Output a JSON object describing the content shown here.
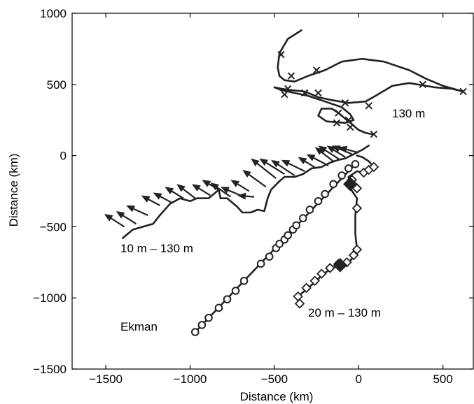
{
  "chart_data": {
    "type": "line",
    "title": "",
    "xlabel": "Distance (km)",
    "ylabel": "Distance (km)",
    "xlim": [
      -1700,
      680
    ],
    "ylim": [
      -1500,
      1000
    ],
    "xticks": [
      -1500,
      -1000,
      -500,
      0,
      500
    ],
    "yticks": [
      -1500,
      -1000,
      -500,
      0,
      500,
      1000
    ],
    "tick_labels_x": [
      "−1500",
      "−1000",
      "−500",
      "0",
      "500"
    ],
    "tick_labels_y": [
      "−1500",
      "−1000",
      "−500",
      "0",
      "500",
      "1000"
    ],
    "grid": false,
    "annotations": [
      "130 m",
      "10 m – 130 m",
      "20 m – 130 m",
      "Ekman"
    ],
    "series": [
      {
        "label_key": "130 m",
        "marker": "x",
        "points": [
          [
            -340,
            880
          ],
          [
            -420,
            820
          ],
          [
            -470,
            720
          ],
          [
            -480,
            620
          ],
          [
            -470,
            560
          ],
          [
            -440,
            530
          ],
          [
            -380,
            520
          ],
          [
            -300,
            560
          ],
          [
            -200,
            600
          ],
          [
            -100,
            660
          ],
          [
            20,
            680
          ],
          [
            150,
            660
          ],
          [
            300,
            600
          ],
          [
            400,
            540
          ],
          [
            500,
            490
          ],
          [
            620,
            450
          ],
          [
            550,
            470
          ],
          [
            450,
            480
          ],
          [
            300,
            510
          ],
          [
            200,
            490
          ],
          [
            100,
            420
          ],
          [
            40,
            380
          ],
          [
            -60,
            370
          ],
          [
            -160,
            390
          ],
          [
            -240,
            410
          ],
          [
            -320,
            450
          ],
          [
            -400,
            460
          ],
          [
            -460,
            470
          ],
          [
            -500,
            480
          ],
          [
            -460,
            460
          ],
          [
            -380,
            440
          ],
          [
            -300,
            420
          ],
          [
            -200,
            380
          ],
          [
            -100,
            340
          ],
          [
            -50,
            290
          ],
          [
            -30,
            250
          ],
          [
            -80,
            230
          ],
          [
            -190,
            240
          ],
          [
            -240,
            280
          ],
          [
            -220,
            330
          ],
          [
            -160,
            330
          ],
          [
            -120,
            300
          ],
          [
            -80,
            260
          ],
          [
            -40,
            220
          ],
          [
            0,
            180
          ],
          [
            40,
            160
          ],
          [
            80,
            150
          ]
        ],
        "marker_points": [
          [
            -460,
            710
          ],
          [
            -400,
            560
          ],
          [
            -250,
            600
          ],
          [
            -420,
            470
          ],
          [
            -440,
            430
          ],
          [
            -320,
            440
          ],
          [
            -240,
            440
          ],
          [
            -80,
            370
          ],
          [
            60,
            350
          ],
          [
            380,
            500
          ],
          [
            620,
            450
          ],
          [
            -120,
            300
          ],
          [
            -60,
            250
          ],
          [
            -130,
            230
          ],
          [
            -50,
            200
          ],
          [
            90,
            150
          ]
        ]
      },
      {
        "label_key": "10 m – 130 m",
        "marker": "arrow",
        "points": [
          [
            -1400,
            -580
          ],
          [
            -1340,
            -520
          ],
          [
            -1280,
            -500
          ],
          [
            -1220,
            -480
          ],
          [
            -1180,
            -420
          ],
          [
            -1120,
            -340
          ],
          [
            -1060,
            -300
          ],
          [
            -1000,
            -320
          ],
          [
            -960,
            -300
          ],
          [
            -890,
            -300
          ],
          [
            -830,
            -240
          ],
          [
            -820,
            -300
          ],
          [
            -780,
            -300
          ],
          [
            -720,
            -360
          ],
          [
            -690,
            -400
          ],
          [
            -640,
            -400
          ],
          [
            -600,
            -380
          ],
          [
            -560,
            -390
          ],
          [
            -540,
            -300
          ],
          [
            -520,
            -240
          ],
          [
            -470,
            -180
          ],
          [
            -440,
            -150
          ],
          [
            -380,
            -150
          ],
          [
            -330,
            -130
          ],
          [
            -280,
            -90
          ],
          [
            -220,
            -80
          ],
          [
            -170,
            -50
          ],
          [
            -120,
            -30
          ],
          [
            -80,
            -20
          ],
          [
            -30,
            10
          ],
          [
            20,
            40
          ],
          [
            60,
            70
          ]
        ],
        "arrow_vectors": [
          [
            -1390,
            -500,
            -1510,
            -410
          ],
          [
            -1320,
            -480,
            -1440,
            -390
          ],
          [
            -1250,
            -420,
            -1380,
            -350
          ],
          [
            -1180,
            -350,
            -1290,
            -280
          ],
          [
            -1110,
            -330,
            -1220,
            -260
          ],
          [
            -1040,
            -300,
            -1150,
            -220
          ],
          [
            -970,
            -300,
            -1080,
            -200
          ],
          [
            -880,
            -280,
            -990,
            -200
          ],
          [
            -830,
            -240,
            -930,
            -170
          ],
          [
            -760,
            -290,
            -880,
            -190
          ],
          [
            -700,
            -280,
            -820,
            -220
          ],
          [
            -650,
            -250,
            -760,
            -170
          ],
          [
            -620,
            -290,
            -720,
            -280
          ],
          [
            -550,
            -220,
            -690,
            -100
          ],
          [
            -490,
            -160,
            -640,
            -20
          ],
          [
            -440,
            -130,
            -590,
            -20
          ],
          [
            -380,
            -140,
            -520,
            -30
          ],
          [
            -320,
            -110,
            -460,
            -30
          ],
          [
            -250,
            -90,
            -360,
            -10
          ],
          [
            -180,
            -70,
            -310,
            10
          ],
          [
            -150,
            -40,
            -260,
            60
          ],
          [
            -110,
            -30,
            -240,
            70
          ],
          [
            -80,
            -10,
            -190,
            70
          ],
          [
            -40,
            10,
            -160,
            70
          ],
          [
            0,
            20,
            -120,
            60
          ]
        ]
      },
      {
        "label_key": "20 m – 130 m",
        "marker": "diamond",
        "points": [
          [
            -350,
            -1040
          ],
          [
            -360,
            -990
          ],
          [
            -300,
            -930
          ],
          [
            -250,
            -880
          ],
          [
            -210,
            -830
          ],
          [
            -150,
            -790
          ],
          [
            -110,
            -760
          ],
          [
            -60,
            -750
          ],
          [
            -20,
            -700
          ],
          [
            -10,
            -660
          ],
          [
            -20,
            -550
          ],
          [
            -20,
            -420
          ],
          [
            -10,
            -300
          ],
          [
            -50,
            -230
          ],
          [
            -60,
            -150
          ],
          [
            -10,
            -110
          ],
          [
            30,
            -120
          ],
          [
            60,
            -100
          ],
          [
            90,
            -80
          ],
          [
            60,
            -40
          ],
          [
            20,
            -10
          ],
          [
            -10,
            0
          ]
        ],
        "marker_points": [
          [
            -350,
            -1040
          ],
          [
            -360,
            -990
          ],
          [
            -310,
            -930
          ],
          [
            -260,
            -880
          ],
          [
            -220,
            -830
          ],
          [
            -170,
            -790
          ],
          [
            -120,
            -760
          ],
          [
            -70,
            -750
          ],
          [
            -30,
            -700
          ],
          [
            -10,
            -660
          ],
          [
            -10,
            -370
          ],
          [
            -10,
            -230
          ],
          [
            -40,
            -200
          ],
          [
            -40,
            -170
          ],
          [
            30,
            -120
          ],
          [
            60,
            -100
          ],
          [
            90,
            -80
          ]
        ],
        "filled_points": [
          [
            -50,
            -200
          ],
          [
            -110,
            -770
          ]
        ]
      },
      {
        "label_key": "Ekman",
        "marker": "o",
        "points": [
          [
            -970,
            -1240
          ],
          [
            -20,
            -60
          ]
        ],
        "marker_points": [
          [
            -970,
            -1240
          ],
          [
            -930,
            -1190
          ],
          [
            -890,
            -1140
          ],
          [
            -830,
            -1070
          ],
          [
            -780,
            -1010
          ],
          [
            -730,
            -950
          ],
          [
            -680,
            -880
          ],
          [
            -580,
            -760
          ],
          [
            -530,
            -710
          ],
          [
            -490,
            -650
          ],
          [
            -470,
            -620
          ],
          [
            -440,
            -590
          ],
          [
            -420,
            -560
          ],
          [
            -390,
            -520
          ],
          [
            -370,
            -490
          ],
          [
            -330,
            -440
          ],
          [
            -290,
            -380
          ],
          [
            -240,
            -320
          ],
          [
            -200,
            -270
          ],
          [
            -150,
            -200
          ],
          [
            -100,
            -140
          ],
          [
            -60,
            -90
          ],
          [
            -20,
            -60
          ]
        ]
      }
    ]
  }
}
